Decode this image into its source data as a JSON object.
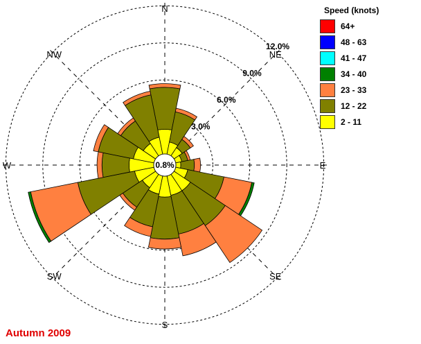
{
  "chart_data": {
    "type": "wind-rose",
    "title": "",
    "footer_label": "Autumn 2009",
    "legend_title": "Speed (knots)",
    "directions": [
      "N",
      "NNE",
      "NE",
      "ENE",
      "E",
      "ESE",
      "SE",
      "SSE",
      "S",
      "SSW",
      "SW",
      "WSW",
      "W",
      "WNW",
      "NW",
      "NNW"
    ],
    "compass_labels": [
      "N",
      "NE",
      "E",
      "SE",
      "S",
      "SW",
      "W",
      "NW"
    ],
    "center_label": "0.8%",
    "ring_labels": [
      "3.0%",
      "6.0%",
      "9.0%",
      "12.0%"
    ],
    "ring_values": [
      3.0,
      6.0,
      9.0,
      12.0
    ],
    "calm_percent": 0.8,
    "units": "%",
    "speed_bins": [
      {
        "label": "2 - 11",
        "color": "#ffff00"
      },
      {
        "label": "12 - 22",
        "color": "#808000"
      },
      {
        "label": "23 - 33",
        "color": "#ff8040"
      },
      {
        "label": "34 - 40",
        "color": "#008000"
      },
      {
        "label": "41 - 47",
        "color": "#00ffff"
      },
      {
        "label": "48 - 63",
        "color": "#0000ff"
      },
      {
        "label": "64+",
        "color": "#ff0000"
      }
    ],
    "cumulative_frequency": [
      {
        "direction": "N",
        "values": [
          2.0,
          5.4,
          5.7,
          5.7,
          5.7,
          5.7,
          5.7
        ]
      },
      {
        "direction": "NNE",
        "values": [
          1.0,
          3.5,
          3.8,
          3.8,
          3.8,
          3.8,
          3.8
        ]
      },
      {
        "direction": "NE",
        "values": [
          0.8,
          1.6,
          1.9,
          1.9,
          1.9,
          1.9,
          1.9
        ]
      },
      {
        "direction": "ENE",
        "values": [
          0.5,
          1.0,
          1.2,
          1.2,
          1.2,
          1.2,
          1.2
        ]
      },
      {
        "direction": "E",
        "values": [
          0.4,
          1.5,
          2.0,
          2.0,
          2.0,
          2.0,
          2.0
        ]
      },
      {
        "direction": "ESE",
        "values": [
          1.0,
          4.0,
          6.3,
          6.5,
          6.5,
          6.5,
          6.5
        ]
      },
      {
        "direction": "SE",
        "values": [
          1.6,
          5.0,
          8.6,
          8.6,
          8.6,
          8.6,
          8.6
        ]
      },
      {
        "direction": "SSE",
        "values": [
          1.6,
          4.8,
          6.6,
          6.6,
          6.6,
          6.6,
          6.6
        ]
      },
      {
        "direction": "S",
        "values": [
          1.7,
          5.1,
          5.9,
          5.9,
          5.9,
          5.9,
          5.9
        ]
      },
      {
        "direction": "SSW",
        "values": [
          1.5,
          4.2,
          5.0,
          5.0,
          5.0,
          5.0,
          5.0
        ]
      },
      {
        "direction": "SW",
        "values": [
          1.3,
          3.2,
          3.5,
          3.5,
          3.5,
          3.5,
          3.5
        ]
      },
      {
        "direction": "WSW",
        "values": [
          1.6,
          6.3,
          10.2,
          10.4,
          10.4,
          10.4,
          10.4
        ]
      },
      {
        "direction": "W",
        "values": [
          2.0,
          4.2,
          4.6,
          4.6,
          4.6,
          4.6,
          4.6
        ]
      },
      {
        "direction": "WNW",
        "values": [
          1.7,
          4.6,
          5.0,
          5.0,
          5.0,
          5.0,
          5.0
        ]
      },
      {
        "direction": "NW",
        "values": [
          1.2,
          3.4,
          3.7,
          3.7,
          3.7,
          3.7,
          3.7
        ]
      },
      {
        "direction": "NNW",
        "values": [
          1.4,
          4.9,
          5.2,
          5.2,
          5.2,
          5.2,
          5.2
        ]
      }
    ],
    "grid": true
  }
}
